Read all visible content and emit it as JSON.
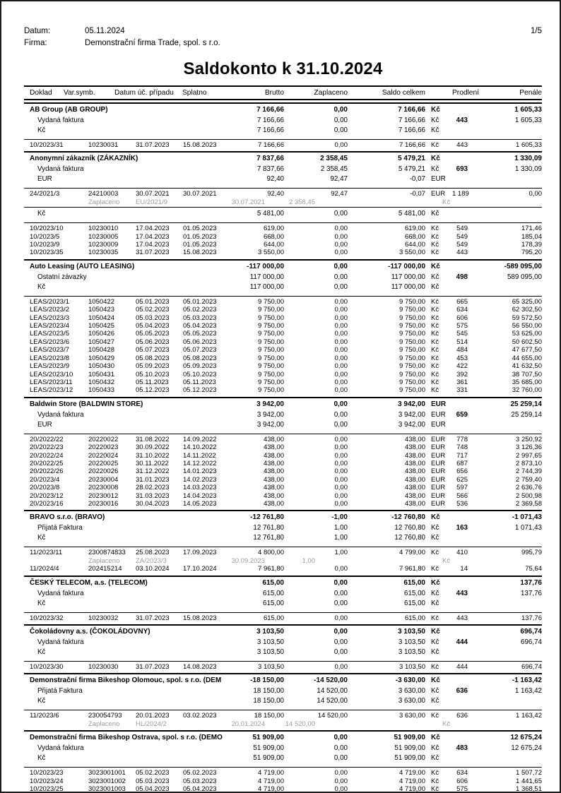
{
  "page": {
    "datum_label": "Datum:",
    "datum_value": "05.11.2024",
    "firma_label": "Firma:",
    "firma_value": "Demonstrační firma Trade, spol. s r.o.",
    "page_number": "1/5",
    "title": "Saldokonto k 31.10.2024"
  },
  "table": {
    "headers": [
      "Doklad",
      "Var.symb.",
      "Datum úč. případu",
      "Splatno",
      "Brutto",
      "Zaplaceno",
      "Saldo celkem",
      "Prodlení",
      "Penále"
    ],
    "rows": [
      {
        "t": "s",
        "rt": "t",
        "c0": "AB Group (AB GROUP)",
        "br": "7 166,66",
        "za": "0,00",
        "sa": "7 166,66",
        "cu": "Kč",
        "pe": "1 605,33"
      },
      {
        "t": "u",
        "c0": "Vydaná faktura",
        "br": "7 166,66",
        "za": "0,00",
        "sa": "7 166,66",
        "cu": "Kč",
        "pr": "443",
        "pe": "1 605,33"
      },
      {
        "t": "c",
        "c0": "Kč",
        "br": "7 166,66",
        "za": "0,00",
        "sa": "7 166,66",
        "cu": "Kč"
      },
      {
        "t": "d",
        "rt": "n",
        "c0": "10/2023/31",
        "c1": "10230031",
        "c2": "31.07.2023",
        "c3": "15.08.2023",
        "br": "7 166,66",
        "za": "0,00",
        "sa": "7 166,66",
        "cu": "Kč",
        "pr": "443",
        "pe": "1 605,33"
      },
      {
        "t": "s",
        "rt": "t",
        "c0": "Anonymní zákazník (ZÁKAZNÍK)",
        "br": "7 837,66",
        "za": "2 358,45",
        "sa": "5 479,21",
        "cu": "Kč",
        "pe": "1 330,09"
      },
      {
        "t": "u",
        "c0": "Vydaná faktura",
        "br": "7 837,66",
        "za": "2 358,45",
        "sa": "5 479,21",
        "cu": "Kč",
        "pr": "693",
        "pe": "1 330,09"
      },
      {
        "t": "c",
        "c0": "EUR",
        "br": "92,40",
        "za": "92,47",
        "sa": "-0,07",
        "cu": "EUR"
      },
      {
        "t": "d",
        "rt": "n",
        "c0": "24/2021/3",
        "c1": "24210003",
        "c2": "30.07.2021",
        "c3": "30.07.2021",
        "br": "92,40",
        "za": "92,47",
        "sa": "-0,07",
        "cu": "EUR",
        "pr": "1 189",
        "pe": "0,00"
      },
      {
        "t": "p",
        "l": "Zaplaceno",
        "ref": "EU/2021/9",
        "date": "30.07.2021",
        "amt": "2 358,45",
        "cu": "Kč"
      },
      {
        "t": "c",
        "rt": "n",
        "c0": "Kč",
        "br": "5 481,00",
        "za": "0,00",
        "sa": "5 481,00",
        "cu": "Kč"
      },
      {
        "t": "d",
        "rt": "n",
        "c0": "10/2023/10",
        "c1": "10230010",
        "c2": "17.04.2023",
        "c3": "01.05.2023",
        "br": "619,00",
        "za": "0,00",
        "sa": "619,00",
        "cu": "Kč",
        "pr": "549",
        "pe": "171,46"
      },
      {
        "t": "d",
        "c0": "10/2023/5",
        "c1": "10230005",
        "c2": "17.04.2023",
        "c3": "01.05.2023",
        "br": "668,00",
        "za": "0,00",
        "sa": "668,00",
        "cu": "Kč",
        "pr": "549",
        "pe": "185,04"
      },
      {
        "t": "d",
        "c0": "10/2023/9",
        "c1": "10230009",
        "c2": "17.04.2023",
        "c3": "01.05.2023",
        "br": "644,00",
        "za": "0,00",
        "sa": "644,00",
        "cu": "Kč",
        "pr": "549",
        "pe": "178,39"
      },
      {
        "t": "d",
        "c0": "10/2023/35",
        "c1": "10230035",
        "c2": "31.07.2023",
        "c3": "15.08.2023",
        "br": "3 550,00",
        "za": "0,00",
        "sa": "3 550,00",
        "cu": "Kč",
        "pr": "443",
        "pe": "795,20"
      },
      {
        "t": "s",
        "rt": "t",
        "c0": "Auto Leasing (AUTO LEASING)",
        "br": "-117 000,00",
        "za": "0,00",
        "sa": "-117 000,00",
        "cu": "Kč",
        "pe": "-589 095,00"
      },
      {
        "t": "u",
        "c0": "Ostatní závazky",
        "br": "117 000,00",
        "za": "0,00",
        "sa": "117 000,00",
        "cu": "Kč",
        "pr": "498",
        "pe": "589 095,00"
      },
      {
        "t": "c",
        "c0": "Kč",
        "br": "117 000,00",
        "za": "0,00",
        "sa": "117 000,00",
        "cu": "Kč"
      },
      {
        "t": "d",
        "rt": "n",
        "c0": "LEAS/2023/1",
        "c1": "1050422",
        "c2": "05.01.2023",
        "c3": "05.01.2023",
        "br": "9 750,00",
        "za": "0,00",
        "sa": "9 750,00",
        "cu": "Kč",
        "pr": "665",
        "pe": "65 325,00"
      },
      {
        "t": "d",
        "c0": "LEAS/2023/2",
        "c1": "1050423",
        "c2": "05.02.2023",
        "c3": "05.02.2023",
        "br": "9 750,00",
        "za": "0,00",
        "sa": "9 750,00",
        "cu": "Kč",
        "pr": "634",
        "pe": "62 302,50"
      },
      {
        "t": "d",
        "c0": "LEAS/2023/3",
        "c1": "1050424",
        "c2": "05.03.2023",
        "c3": "05.03.2023",
        "br": "9 750,00",
        "za": "0,00",
        "sa": "9 750,00",
        "cu": "Kč",
        "pr": "606",
        "pe": "59 572,50"
      },
      {
        "t": "d",
        "c0": "LEAS/2023/4",
        "c1": "1050425",
        "c2": "05.04.2023",
        "c3": "05.04.2023",
        "br": "9 750,00",
        "za": "0,00",
        "sa": "9 750,00",
        "cu": "Kč",
        "pr": "575",
        "pe": "56 550,00"
      },
      {
        "t": "d",
        "c0": "LEAS/2023/5",
        "c1": "1050426",
        "c2": "05.05.2023",
        "c3": "05.05.2023",
        "br": "9 750,00",
        "za": "0,00",
        "sa": "9 750,00",
        "cu": "Kč",
        "pr": "545",
        "pe": "53 625,00"
      },
      {
        "t": "d",
        "c0": "LEAS/2023/6",
        "c1": "1050427",
        "c2": "05.06.2023",
        "c3": "05.06.2023",
        "br": "9 750,00",
        "za": "0,00",
        "sa": "9 750,00",
        "cu": "Kč",
        "pr": "514",
        "pe": "50 602,50"
      },
      {
        "t": "d",
        "c0": "LEAS/2023/7",
        "c1": "1050428",
        "c2": "05.07.2023",
        "c3": "05.07.2023",
        "br": "9 750,00",
        "za": "0,00",
        "sa": "9 750,00",
        "cu": "Kč",
        "pr": "484",
        "pe": "47 677,50"
      },
      {
        "t": "d",
        "c0": "LEAS/2023/8",
        "c1": "1050429",
        "c2": "05.08.2023",
        "c3": "05.08.2023",
        "br": "9 750,00",
        "za": "0,00",
        "sa": "9 750,00",
        "cu": "Kč",
        "pr": "453",
        "pe": "44 655,00"
      },
      {
        "t": "d",
        "c0": "LEAS/2023/9",
        "c1": "1050430",
        "c2": "05.09.2023",
        "c3": "05.09.2023",
        "br": "9 750,00",
        "za": "0,00",
        "sa": "9 750,00",
        "cu": "Kč",
        "pr": "422",
        "pe": "41 632,50"
      },
      {
        "t": "d",
        "c0": "LEAS/2023/10",
        "c1": "1050431",
        "c2": "05.10.2023",
        "c3": "05.10.2023",
        "br": "9 750,00",
        "za": "0,00",
        "sa": "9 750,00",
        "cu": "Kč",
        "pr": "392",
        "pe": "38 707,50"
      },
      {
        "t": "d",
        "c0": "LEAS/2023/11",
        "c1": "1050432",
        "c2": "05.11.2023",
        "c3": "05.11.2023",
        "br": "9 750,00",
        "za": "0,00",
        "sa": "9 750,00",
        "cu": "Kč",
        "pr": "361",
        "pe": "35 685,00"
      },
      {
        "t": "d",
        "c0": "LEAS/2023/12",
        "c1": "1050433",
        "c2": "05.12.2023",
        "c3": "05.12.2023",
        "br": "9 750,00",
        "za": "0,00",
        "sa": "9 750,00",
        "cu": "Kč",
        "pr": "331",
        "pe": "32 760,00"
      },
      {
        "t": "s",
        "rt": "t",
        "c0": "Baldwin Store (BALDWIN STORE)",
        "br": "3 942,00",
        "za": "0,00",
        "sa": "3 942,00",
        "cu": "EUR",
        "pe": "25 259,14"
      },
      {
        "t": "u",
        "c0": "Vydaná faktura",
        "br": "3 942,00",
        "za": "0,00",
        "sa": "3 942,00",
        "cu": "EUR",
        "pr": "659",
        "pe": "25 259,14"
      },
      {
        "t": "c",
        "c0": "EUR",
        "br": "3 942,00",
        "za": "0,00",
        "sa": "3 942,00",
        "cu": "EUR"
      },
      {
        "t": "d",
        "rt": "n",
        "c0": "20/2022/22",
        "c1": "20220022",
        "c2": "31.08.2022",
        "c3": "14.09.2022",
        "br": "438,00",
        "za": "0,00",
        "sa": "438,00",
        "cu": "EUR",
        "pr": "778",
        "pe": "3 250,92"
      },
      {
        "t": "d",
        "c0": "20/2022/23",
        "c1": "20220023",
        "c2": "30.09.2022",
        "c3": "14.10.2022",
        "br": "438,00",
        "za": "0,00",
        "sa": "438,00",
        "cu": "EUR",
        "pr": "748",
        "pe": "3 126,36"
      },
      {
        "t": "d",
        "c0": "20/2022/24",
        "c1": "20220024",
        "c2": "31.10.2022",
        "c3": "14.11.2022",
        "br": "438,00",
        "za": "0,00",
        "sa": "438,00",
        "cu": "EUR",
        "pr": "717",
        "pe": "2 997,65"
      },
      {
        "t": "d",
        "c0": "20/2022/25",
        "c1": "20220025",
        "c2": "30.11.2022",
        "c3": "14.12.2022",
        "br": "438,00",
        "za": "0,00",
        "sa": "438,00",
        "cu": "EUR",
        "pr": "687",
        "pe": "2 873,10"
      },
      {
        "t": "d",
        "c0": "20/2022/26",
        "c1": "20220026",
        "c2": "31.12.2022",
        "c3": "14.01.2023",
        "br": "438,00",
        "za": "0,00",
        "sa": "438,00",
        "cu": "EUR",
        "pr": "656",
        "pe": "2 744,39"
      },
      {
        "t": "d",
        "c0": "20/2023/4",
        "c1": "20230004",
        "c2": "31.01.2023",
        "c3": "14.02.2023",
        "br": "438,00",
        "za": "0,00",
        "sa": "438,00",
        "cu": "EUR",
        "pr": "625",
        "pe": "2 759,40"
      },
      {
        "t": "d",
        "c0": "20/2023/8",
        "c1": "20230008",
        "c2": "28.02.2023",
        "c3": "14.03.2023",
        "br": "438,00",
        "za": "0,00",
        "sa": "438,00",
        "cu": "EUR",
        "pr": "597",
        "pe": "2 636,76"
      },
      {
        "t": "d",
        "c0": "20/2023/12",
        "c1": "20230012",
        "c2": "31.03.2023",
        "c3": "14.04.2023",
        "br": "438,00",
        "za": "0,00",
        "sa": "438,00",
        "cu": "EUR",
        "pr": "566",
        "pe": "2 500,98"
      },
      {
        "t": "d",
        "c0": "20/2023/16",
        "c1": "20230016",
        "c2": "30.04.2023",
        "c3": "14.05.2023",
        "br": "438,00",
        "za": "0,00",
        "sa": "438,00",
        "cu": "EUR",
        "pr": "536",
        "pe": "2 369,58"
      },
      {
        "t": "s",
        "rt": "t",
        "c0": "BRAVO s.r.o. (BRAVO)",
        "br": "-12 761,80",
        "za": "-1,00",
        "sa": "-12 760,80",
        "cu": "Kč",
        "pe": "-1 071,43"
      },
      {
        "t": "u",
        "c0": "Přijatá Faktura",
        "br": "12 761,80",
        "za": "1,00",
        "sa": "12 760,80",
        "cu": "Kč",
        "pr": "163",
        "pe": "1 071,43"
      },
      {
        "t": "c",
        "c0": "Kč",
        "br": "12 761,80",
        "za": "1,00",
        "sa": "12 760,80",
        "cu": "Kč"
      },
      {
        "t": "d",
        "rt": "n",
        "c0": "11/2023/11",
        "c1": "2300874833",
        "c2": "25.08.2023",
        "c3": "17.09.2023",
        "br": "4 800,00",
        "za": "1,00",
        "sa": "4 799,00",
        "cu": "Kč",
        "pr": "410",
        "pe": "995,79"
      },
      {
        "t": "p",
        "l": "Zaplaceno",
        "ref": "ZA/2023/3",
        "date": "30.09.2023",
        "amt": "1,00",
        "cu": "Kč"
      },
      {
        "t": "d",
        "c0": "11/2024/4",
        "c1": "202415214",
        "c2": "03.10.2024",
        "c3": "17.10.2024",
        "br": "7 961,80",
        "za": "0,00",
        "sa": "7 961,80",
        "cu": "Kč",
        "pr": "14",
        "pe": "75,64"
      },
      {
        "t": "s",
        "rt": "t",
        "c0": "ČESKÝ TELECOM, a.s. (TELECOM)",
        "br": "615,00",
        "za": "0,00",
        "sa": "615,00",
        "cu": "Kč",
        "pe": "137,76"
      },
      {
        "t": "u",
        "c0": "Vydaná faktura",
        "br": "615,00",
        "za": "0,00",
        "sa": "615,00",
        "cu": "Kč",
        "pr": "443",
        "pe": "137,76"
      },
      {
        "t": "c",
        "c0": "Kč",
        "br": "615,00",
        "za": "0,00",
        "sa": "615,00",
        "cu": "Kč"
      },
      {
        "t": "d",
        "rt": "n",
        "c0": "10/2023/32",
        "c1": "10230032",
        "c2": "31.07.2023",
        "c3": "15.08.2023",
        "br": "615,00",
        "za": "0,00",
        "sa": "615,00",
        "cu": "Kč",
        "pr": "443",
        "pe": "137,76"
      },
      {
        "t": "s",
        "rt": "t",
        "c0": "Čokoládovny a.s. (ČOKOLÁDOVNY)",
        "br": "3 103,50",
        "za": "0,00",
        "sa": "3 103,50",
        "cu": "Kč",
        "pe": "696,74"
      },
      {
        "t": "u",
        "c0": "Vydaná faktura",
        "br": "3 103,50",
        "za": "0,00",
        "sa": "3 103,50",
        "cu": "Kč",
        "pr": "444",
        "pe": "696,74"
      },
      {
        "t": "c",
        "c0": "Kč",
        "br": "3 103,50",
        "za": "0,00",
        "sa": "3 103,50",
        "cu": "Kč"
      },
      {
        "t": "d",
        "rt": "n",
        "c0": "10/2023/30",
        "c1": "10230030",
        "c2": "31.07.2023",
        "c3": "14.08.2023",
        "br": "3 103,50",
        "za": "0,00",
        "sa": "3 103,50",
        "cu": "Kč",
        "pr": "444",
        "pe": "696,74"
      },
      {
        "t": "s",
        "rt": "t",
        "c0": "Demonstrační firma Bikeshop Olomouc, spol. s r.o. (DEM",
        "br": "-18 150,00",
        "za": "-14 520,00",
        "sa": "-3 630,00",
        "cu": "Kč",
        "pe": "-1 163,42"
      },
      {
        "t": "u",
        "c0": "Přijatá Faktura",
        "br": "18 150,00",
        "za": "14 520,00",
        "sa": "3 630,00",
        "cu": "Kč",
        "pr": "636",
        "pe": "1 163,42"
      },
      {
        "t": "c",
        "c0": "Kč",
        "br": "18 150,00",
        "za": "14 520,00",
        "sa": "3 630,00",
        "cu": "Kč"
      },
      {
        "t": "d",
        "rt": "n",
        "c0": "11/2023/6",
        "c1": "230054793",
        "c2": "20.01.2023",
        "c3": "03.02.2023",
        "br": "18 150,00",
        "za": "14 520,00",
        "sa": "3 630,00",
        "cu": "Kč",
        "pr": "636",
        "pe": "1 163,42"
      },
      {
        "t": "p",
        "l": "Zaplaceno",
        "ref": "HL/2024/2",
        "date": "20.01.2024",
        "amt": "14 520,00",
        "cu": "Kč"
      },
      {
        "t": "s",
        "rt": "t",
        "c0": "Demonstrační firma Bikeshop Ostrava, spol. s r.o. (DEMO",
        "br": "51 909,00",
        "za": "0,00",
        "sa": "51 909,00",
        "cu": "Kč",
        "pe": "12 675,24"
      },
      {
        "t": "u",
        "c0": "Vydaná faktura",
        "br": "51 909,00",
        "za": "0,00",
        "sa": "51 909,00",
        "cu": "Kč",
        "pr": "483",
        "pe": "12 675,24"
      },
      {
        "t": "c",
        "c0": "Kč",
        "br": "51 909,00",
        "za": "0,00",
        "sa": "51 909,00",
        "cu": "Kč"
      },
      {
        "t": "d",
        "rt": "n",
        "c0": "10/2023/23",
        "c1": "3023001001",
        "c2": "05.02.2023",
        "c3": "05.02.2023",
        "br": "4 719,00",
        "za": "0,00",
        "sa": "4 719,00",
        "cu": "Kč",
        "pr": "634",
        "pe": "1 507,72"
      },
      {
        "t": "d",
        "c0": "10/2023/24",
        "c1": "3023001002",
        "c2": "05.03.2023",
        "c3": "05.03.2023",
        "br": "4 719,00",
        "za": "0,00",
        "sa": "4 719,00",
        "cu": "Kč",
        "pr": "606",
        "pe": "1 441,65"
      },
      {
        "t": "d",
        "c0": "10/2023/25",
        "c1": "3023001003",
        "c2": "05.04.2023",
        "c3": "05.04.2023",
        "br": "4 719,00",
        "za": "0,00",
        "sa": "4 719,00",
        "cu": "Kč",
        "pr": "575",
        "pe": "1 368,51"
      }
    ]
  }
}
